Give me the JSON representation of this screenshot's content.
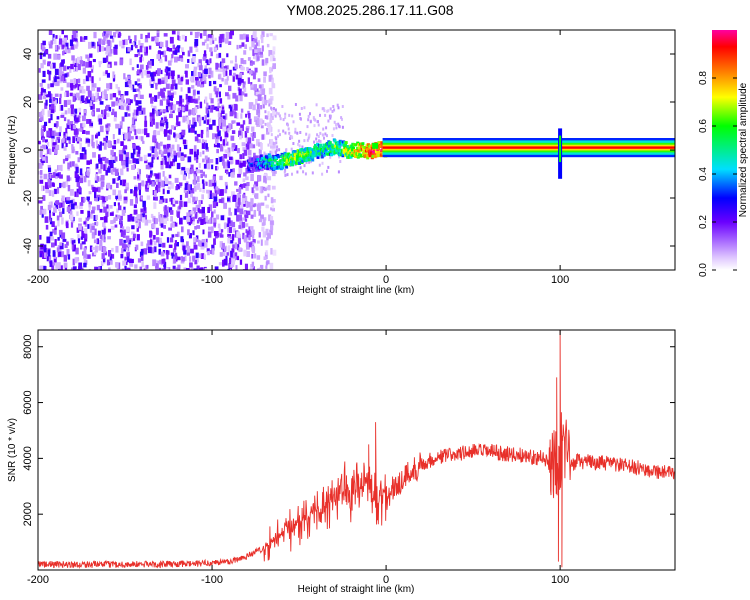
{
  "title": "YM08.2025.286.17.11.G08",
  "chart_data": [
    {
      "type": "heatmap",
      "xlabel": "Height of straight line (km)",
      "ylabel": "Frequency (Hz)",
      "xlim": [
        -200,
        166
      ],
      "ylim": [
        -50,
        50
      ],
      "xticks": [
        -200,
        -100,
        0,
        100
      ],
      "xtick_labels": [
        "-200",
        "-100",
        "0",
        "100"
      ],
      "yticks": [
        -40,
        -20,
        0,
        20,
        40
      ],
      "ytick_labels": [
        "-40",
        "-20",
        "0",
        "20",
        "40"
      ],
      "ridge": [
        [
          -80,
          -6,
          0.25
        ],
        [
          -75,
          -5,
          0.4
        ],
        [
          -70,
          -4,
          0.5
        ],
        [
          -65,
          -5,
          0.55
        ],
        [
          -60,
          -4,
          0.6
        ],
        [
          -55,
          -3,
          0.65
        ],
        [
          -50,
          -2,
          0.6
        ],
        [
          -45,
          -1,
          0.55
        ],
        [
          -40,
          0,
          0.5
        ],
        [
          -35,
          1,
          0.55
        ],
        [
          -30,
          2,
          0.6
        ],
        [
          -25,
          1,
          0.7
        ],
        [
          -20,
          0,
          0.75
        ],
        [
          -15,
          1,
          0.85
        ],
        [
          -10,
          0,
          0.9
        ],
        [
          -5,
          1,
          0.95
        ],
        [
          0,
          1,
          0.98
        ],
        [
          50,
          1,
          0.98
        ],
        [
          100,
          1,
          0.98
        ],
        [
          166,
          1,
          0.98
        ]
      ],
      "spike_khm": 100,
      "colorbar": {
        "label": "Normalized spectral amplitude",
        "ticks": [
          0,
          0.2,
          0.4,
          0.6,
          0.8
        ],
        "tick_labels": [
          "0.0",
          "0.2",
          "0.4",
          "0.6",
          "0.8"
        ],
        "range": [
          0,
          1
        ]
      }
    },
    {
      "type": "line",
      "xlabel": "Height of straight line (km)",
      "ylabel": "SNR (10 * v/v)",
      "xlim": [
        -200,
        166
      ],
      "ylim": [
        0,
        8600
      ],
      "xticks": [
        -200,
        -100,
        0,
        100
      ],
      "xtick_labels": [
        "-200",
        "-100",
        "0",
        "100"
      ],
      "yticks": [
        2000,
        4000,
        6000,
        8000
      ],
      "ytick_labels": [
        "2000",
        "4000",
        "6000",
        "8000"
      ],
      "color": "#e8302a",
      "x": [
        -200,
        -150,
        -110,
        -90,
        -80,
        -70,
        -60,
        -50,
        -40,
        -30,
        -20,
        -10,
        -5,
        -2,
        0,
        10,
        20,
        30,
        40,
        50,
        60,
        70,
        80,
        90,
        95,
        98,
        100,
        102,
        105,
        110,
        120,
        130,
        140,
        150,
        160,
        166
      ],
      "values": [
        200,
        200,
        220,
        300,
        500,
        800,
        1300,
        1700,
        2100,
        2600,
        2900,
        3100,
        2300,
        2900,
        2600,
        3300,
        3800,
        4050,
        4150,
        4250,
        4250,
        4150,
        4100,
        4000,
        3800,
        4100,
        4500,
        4000,
        3700,
        3900,
        3850,
        3800,
        3700,
        3600,
        3500,
        3400
      ],
      "spikes": [
        [
          -10,
          4500
        ],
        [
          -6,
          5300
        ],
        [
          98,
          6900
        ],
        [
          100,
          8600
        ],
        [
          101,
          100
        ],
        [
          99,
          300
        ]
      ]
    }
  ]
}
